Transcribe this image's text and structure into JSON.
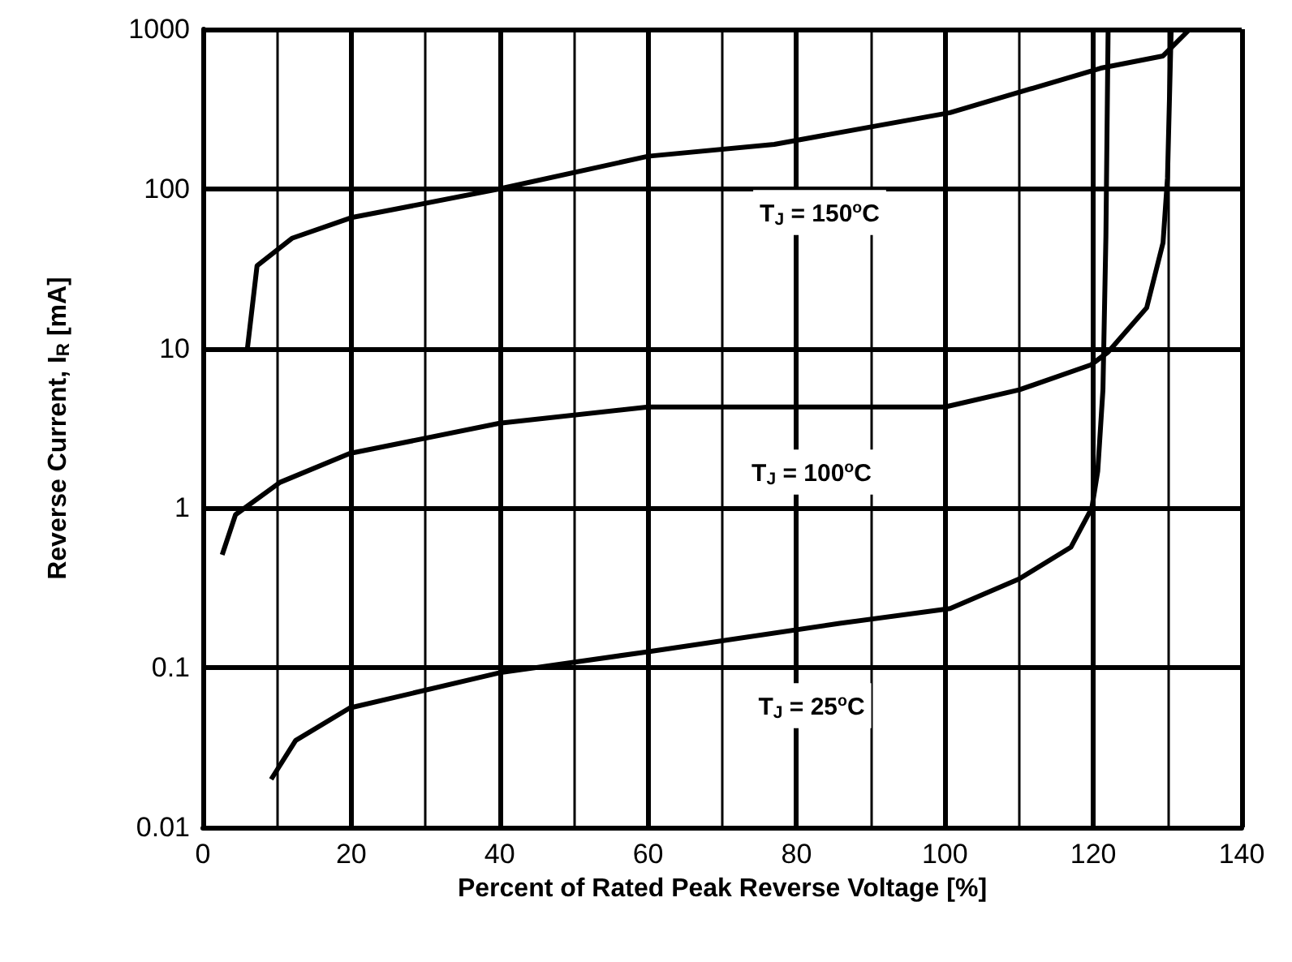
{
  "chart_data": {
    "type": "line",
    "xlabel": "Percent of Rated Peak Reverse Voltage [%]",
    "ylabel": "Reverse Current, I$_{R}$ [mA]",
    "xlim": [
      0,
      140
    ],
    "xticks": [
      0,
      20,
      40,
      60,
      80,
      100,
      120,
      140
    ],
    "ylim": [
      0.01,
      1000
    ],
    "yticks": [
      0.01,
      0.1,
      1,
      10,
      100,
      1000
    ],
    "log": true,
    "grid": true,
    "series": [
      {
        "color": "#000000",
        "x": [
          6,
          7.3,
          12,
          20,
          40,
          60,
          77,
          100.7,
          121,
          129.4,
          133
        ],
        "values": [
          10,
          33,
          49,
          66,
          100,
          160,
          190,
          300,
          570,
          680,
          1000
        ]
      },
      {
        "color": "#000000",
        "x": [
          2.6,
          4.4,
          10.4,
          19.8,
          40,
          60,
          100,
          110,
          119.7,
          122,
          127.2,
          129.4,
          130,
          130.5
        ],
        "values": [
          0.51,
          0.91,
          1.45,
          2.2,
          3.4,
          4.3,
          4.3,
          5.5,
          7.9,
          9.5,
          18,
          46,
          117,
          1000
        ]
      },
      {
        "color": "#000000",
        "x": [
          9.2,
          12.5,
          19.8,
          40,
          60,
          86,
          100.7,
          110,
          117,
          119.8,
          120.6,
          121.3,
          121.7,
          122
        ],
        "values": [
          0.02,
          0.035,
          0.056,
          0.093,
          0.126,
          0.19,
          0.235,
          0.36,
          0.57,
          1,
          1.7,
          5.5,
          50,
          1000
        ]
      }
    ],
    "annotations": [
      "T$_{J}$ = 150$^{o}$C",
      "T$_{J}$ = 100$^{o}$C",
      "T$_{J}$ = 25$^{o}$C"
    ]
  }
}
